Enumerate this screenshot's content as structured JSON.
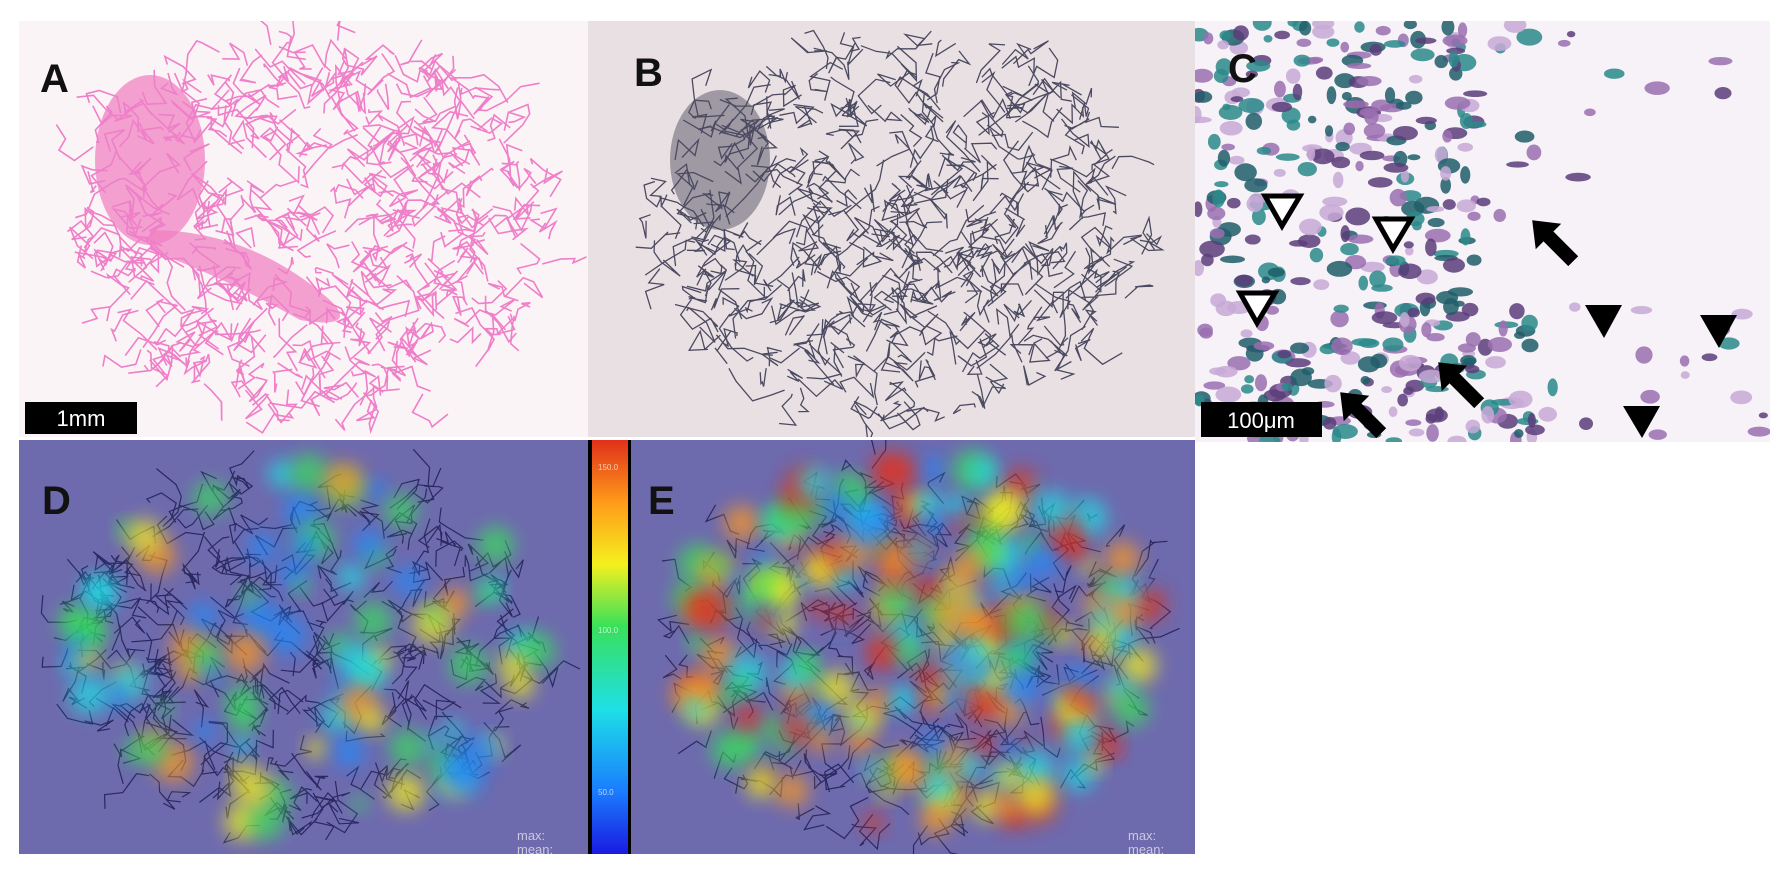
{
  "panel_labels": [
    "A",
    "B",
    "C",
    "D",
    "E"
  ],
  "scale_bar_a": "1mm",
  "scale_bar_c": "100μm",
  "colorbar_ticks": [
    "150.0",
    "100.0",
    "50.0"
  ],
  "heatmap_stats": [
    [
      "max:",
      "mean:"
    ],
    [
      "max:",
      "mean:"
    ]
  ]
}
